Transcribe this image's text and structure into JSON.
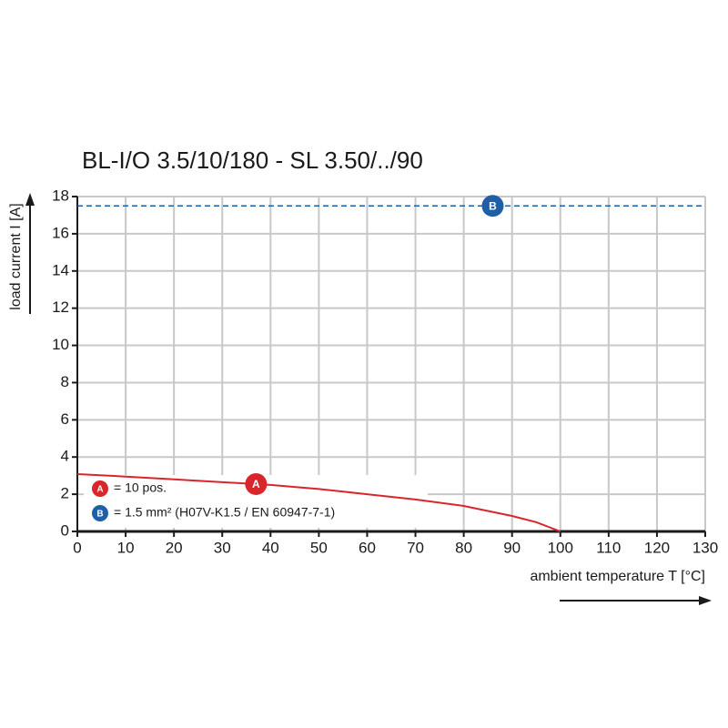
{
  "chart_data": {
    "type": "line",
    "title": "BL-I/O 3.5/10/180 - SL 3.50/../90",
    "x_label": "ambient temperature T [°C]",
    "y_label": "load current I [A]",
    "x": [
      0,
      10,
      20,
      30,
      40,
      50,
      60,
      70,
      80,
      90,
      95,
      100
    ],
    "series": [
      {
        "name": "A",
        "description": "= 10 pos.",
        "color": "#d9262b",
        "marker_x": 37,
        "values": [
          3.08,
          2.95,
          2.8,
          2.65,
          2.5,
          2.28,
          2.0,
          1.72,
          1.37,
          0.83,
          0.5,
          0
        ]
      }
    ],
    "reference_lines": [
      {
        "name": "B",
        "description": "= 1.5 mm² (H07V-K1.5 / EN 60947-7-1)",
        "color": "#1f5fa5",
        "value": 17.5,
        "marker_x": 86
      }
    ],
    "xlim": [
      0,
      130
    ],
    "xticks": [
      0,
      10,
      20,
      30,
      40,
      50,
      60,
      70,
      80,
      90,
      100,
      110,
      120,
      130
    ],
    "ylim": [
      0,
      18
    ],
    "yticks": [
      0,
      2,
      4,
      6,
      8,
      10,
      12,
      14,
      16,
      18
    ],
    "grid": true
  }
}
